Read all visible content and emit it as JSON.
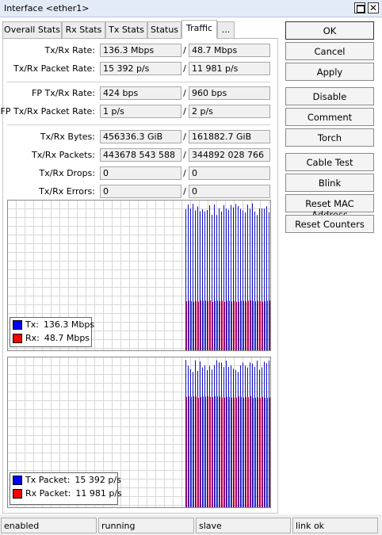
{
  "window": {
    "title": "Interface <ether1>"
  },
  "tabs": [
    {
      "label": "Overall Stats"
    },
    {
      "label": "Rx Stats"
    },
    {
      "label": "Tx Stats"
    },
    {
      "label": "Status"
    },
    {
      "label": "Traffic",
      "active": true
    },
    {
      "label": "..."
    }
  ],
  "separator": "/",
  "groups": [
    [
      {
        "label": "Tx/Rx Rate:",
        "tx": "136.3 Mbps",
        "rx": "48.7 Mbps"
      },
      {
        "label": "Tx/Rx Packet Rate:",
        "tx": "15 392 p/s",
        "rx": "11 981 p/s"
      }
    ],
    [
      {
        "label": "FP Tx/Rx Rate:",
        "tx": "424 bps",
        "rx": "960 bps"
      },
      {
        "label": "FP Tx/Rx Packet Rate:",
        "tx": "1 p/s",
        "rx": "2 p/s"
      }
    ],
    [
      {
        "label": "Tx/Rx Bytes:",
        "tx": "456336.3 GiB",
        "rx": "161882.7 GiB"
      },
      {
        "label": "Tx/Rx Packets:",
        "tx": "443678 543 588",
        "rx": "344892 028 766"
      },
      {
        "label": "Tx/Rx Drops:",
        "tx": "0",
        "rx": "0"
      },
      {
        "label": "Tx/Rx Errors:",
        "tx": "0",
        "rx": "0"
      }
    ]
  ],
  "buttons": [
    "OK",
    "Cancel",
    "Apply",
    "Disable",
    "Comment",
    "Torch",
    "Cable Test",
    "Blink",
    "Reset MAC Address",
    "Reset Counters"
  ],
  "graphs": [
    {
      "legend": [
        {
          "label": "Tx:",
          "value": "136.3 Mbps",
          "color": "#0000ff"
        },
        {
          "label": "Rx:",
          "value": "48.7 Mbps",
          "color": "#ff0000"
        }
      ]
    },
    {
      "legend": [
        {
          "label": "Tx Packet:",
          "value": "15 392 p/s",
          "color": "#0000ff"
        },
        {
          "label": "Rx Packet:",
          "value": "11 981 p/s",
          "color": "#ff0000"
        }
      ]
    }
  ],
  "status_bar": [
    "enabled",
    "running",
    "slave",
    "link ok"
  ]
}
